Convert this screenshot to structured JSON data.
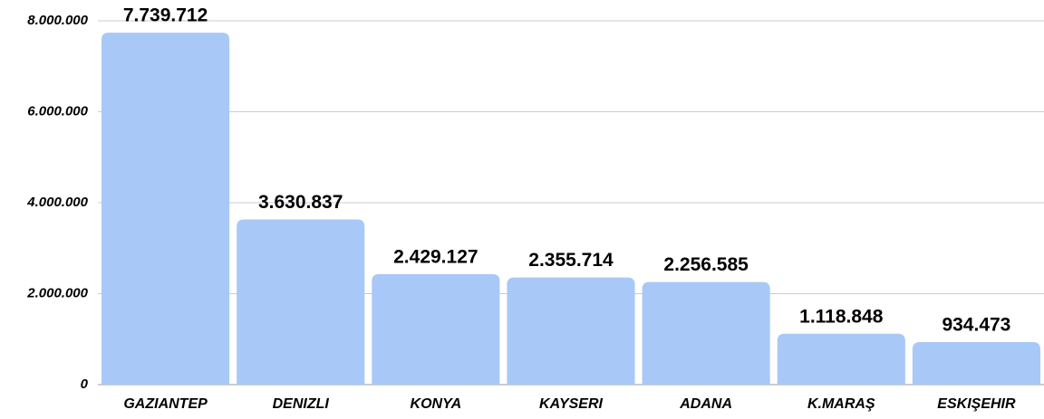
{
  "chart_data": {
    "type": "bar",
    "categories": [
      "GAZIANTEP",
      "DENIZLI",
      "KONYA",
      "KAYSERI",
      "ADANA",
      "K.MARAŞ",
      "ESKIŞEHIR"
    ],
    "values": [
      7739712,
      3630837,
      2429127,
      2355714,
      2256585,
      1118848,
      934473
    ],
    "value_labels": [
      "7.739.712",
      "3.630.837",
      "2.429.127",
      "2.355.714",
      "2.256.585",
      "1.118.848",
      "934.473"
    ],
    "color": "#a8c9f7",
    "ylim": [
      0,
      8000000
    ],
    "yticks": [
      0,
      {
        "value": 2000000,
        "label": "2.000.000"
      },
      {
        "value": 4000000,
        "label": "4.000.000"
      },
      {
        "value": 6000000,
        "label": "6.000.000"
      },
      {
        "value": 8000000,
        "label": "8.000.000"
      }
    ],
    "grid": true
  }
}
